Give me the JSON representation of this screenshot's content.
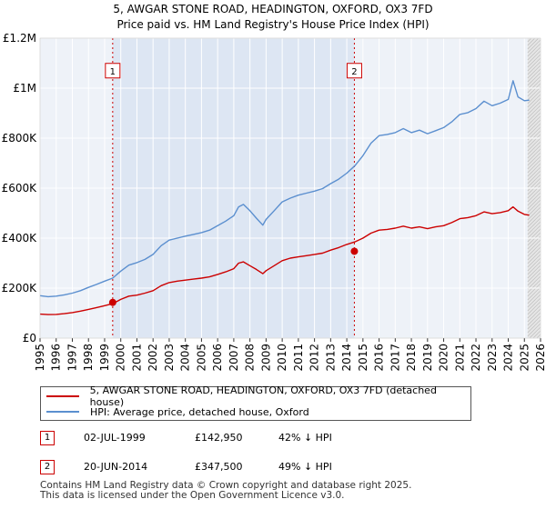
{
  "chart_data": {
    "type": "line",
    "title_line1": "5, AWGAR STONE ROAD, HEADINGTON, OXFORD, OX3 7FD",
    "title_line2": "Price paid vs. HM Land Registry's House Price Index (HPI)",
    "xlim": [
      1995,
      2026
    ],
    "ylim": [
      0,
      1200000
    ],
    "y_ticks": [
      {
        "value": 0,
        "label": "£0"
      },
      {
        "value": 200000,
        "label": "£200K"
      },
      {
        "value": 400000,
        "label": "£400K"
      },
      {
        "value": 600000,
        "label": "£600K"
      },
      {
        "value": 800000,
        "label": "£800K"
      },
      {
        "value": 1000000,
        "label": "£1M"
      },
      {
        "value": 1200000,
        "label": "£1.2M"
      }
    ],
    "x_ticks": [
      "1995",
      "1996",
      "1997",
      "1998",
      "1999",
      "2000",
      "2001",
      "2002",
      "2003",
      "2004",
      "2005",
      "2006",
      "2007",
      "2008",
      "2009",
      "2010",
      "2011",
      "2012",
      "2013",
      "2014",
      "2015",
      "2016",
      "2017",
      "2018",
      "2019",
      "2020",
      "2021",
      "2022",
      "2023",
      "2024",
      "2025",
      "2026"
    ],
    "future_start": 2025.2,
    "series": [
      {
        "name": "5, AWGAR STONE ROAD, HEADINGTON, OXFORD, OX3 7FD (detached house)",
        "color": "#cc0000",
        "x": [
          1995.0,
          1995.5,
          1996.0,
          1996.5,
          1997.0,
          1997.5,
          1998.0,
          1998.5,
          1999.0,
          1999.5,
          2000.0,
          2000.5,
          2001.0,
          2001.5,
          2002.0,
          2002.5,
          2003.0,
          2003.5,
          2004.0,
          2004.5,
          2005.0,
          2005.5,
          2006.0,
          2006.5,
          2007.0,
          2007.3,
          2007.6,
          2008.0,
          2008.4,
          2008.8,
          2009.0,
          2009.5,
          2010.0,
          2010.5,
          2011.0,
          2011.5,
          2012.0,
          2012.5,
          2013.0,
          2013.5,
          2014.0,
          2014.5,
          2015.0,
          2015.5,
          2016.0,
          2016.5,
          2017.0,
          2017.5,
          2018.0,
          2018.5,
          2019.0,
          2019.5,
          2020.0,
          2020.5,
          2021.0,
          2021.5,
          2022.0,
          2022.5,
          2023.0,
          2023.5,
          2024.0,
          2024.3,
          2024.6,
          2025.0,
          2025.3
        ],
        "values": [
          96000,
          94000,
          95000,
          98000,
          102000,
          108000,
          115000,
          122000,
          130000,
          138000,
          155000,
          168000,
          172000,
          180000,
          190000,
          210000,
          222000,
          228000,
          232000,
          236000,
          240000,
          245000,
          255000,
          265000,
          278000,
          300000,
          305000,
          290000,
          275000,
          258000,
          270000,
          290000,
          310000,
          320000,
          325000,
          330000,
          335000,
          340000,
          352000,
          362000,
          375000,
          385000,
          400000,
          420000,
          432000,
          435000,
          440000,
          448000,
          440000,
          445000,
          438000,
          445000,
          450000,
          462000,
          478000,
          482000,
          490000,
          505000,
          498000,
          502000,
          510000,
          525000,
          508000,
          495000,
          492000
        ]
      },
      {
        "name": "HPI: Average price, detached house, Oxford",
        "color": "#5b8fcf",
        "x": [
          1995.0,
          1995.5,
          1996.0,
          1996.5,
          1997.0,
          1997.5,
          1998.0,
          1998.5,
          1999.0,
          1999.5,
          2000.0,
          2000.5,
          2001.0,
          2001.5,
          2002.0,
          2002.5,
          2003.0,
          2003.5,
          2004.0,
          2004.5,
          2005.0,
          2005.5,
          2006.0,
          2006.5,
          2007.0,
          2007.3,
          2007.6,
          2008.0,
          2008.4,
          2008.8,
          2009.0,
          2009.5,
          2010.0,
          2010.5,
          2011.0,
          2011.5,
          2012.0,
          2012.5,
          2013.0,
          2013.5,
          2014.0,
          2014.5,
          2015.0,
          2015.5,
          2016.0,
          2016.5,
          2017.0,
          2017.5,
          2018.0,
          2018.5,
          2019.0,
          2019.5,
          2020.0,
          2020.5,
          2021.0,
          2021.5,
          2022.0,
          2022.5,
          2023.0,
          2023.5,
          2024.0,
          2024.3,
          2024.6,
          2025.0,
          2025.3
        ],
        "values": [
          170000,
          166000,
          168000,
          173000,
          180000,
          190000,
          203000,
          215000,
          228000,
          240000,
          268000,
          292000,
          302000,
          315000,
          335000,
          370000,
          392000,
          400000,
          408000,
          415000,
          422000,
          432000,
          450000,
          468000,
          490000,
          525000,
          535000,
          510000,
          480000,
          452000,
          475000,
          510000,
          545000,
          560000,
          572000,
          580000,
          588000,
          598000,
          618000,
          636000,
          660000,
          690000,
          730000,
          780000,
          810000,
          815000,
          822000,
          838000,
          822000,
          832000,
          818000,
          830000,
          842000,
          865000,
          895000,
          902000,
          918000,
          948000,
          930000,
          940000,
          955000,
          1030000,
          965000,
          950000,
          952000
        ]
      }
    ],
    "sales": [
      {
        "label": "1",
        "date": "02-JUL-1999",
        "year": 1999.5,
        "price_value": 142950,
        "price": "£142,950",
        "hpi": "42% ↓ HPI"
      },
      {
        "label": "2",
        "date": "20-JUN-2014",
        "year": 2014.47,
        "price_value": 347500,
        "price": "£347,500",
        "hpi": "49% ↓ HPI"
      }
    ],
    "annotation_value": 1070000
  },
  "legend": {
    "property_label": "5, AWGAR STONE ROAD, HEADINGTON, OXFORD, OX3 7FD (detached house)",
    "hpi_label": "HPI: Average price, detached house, Oxford",
    "property_color": "#cc0000",
    "hpi_color": "#5b8fcf"
  },
  "footer": {
    "line1": "Contains HM Land Registry data © Crown copyright and database right 2025.",
    "line2": "This data is licensed under the Open Government Licence v3.0."
  }
}
